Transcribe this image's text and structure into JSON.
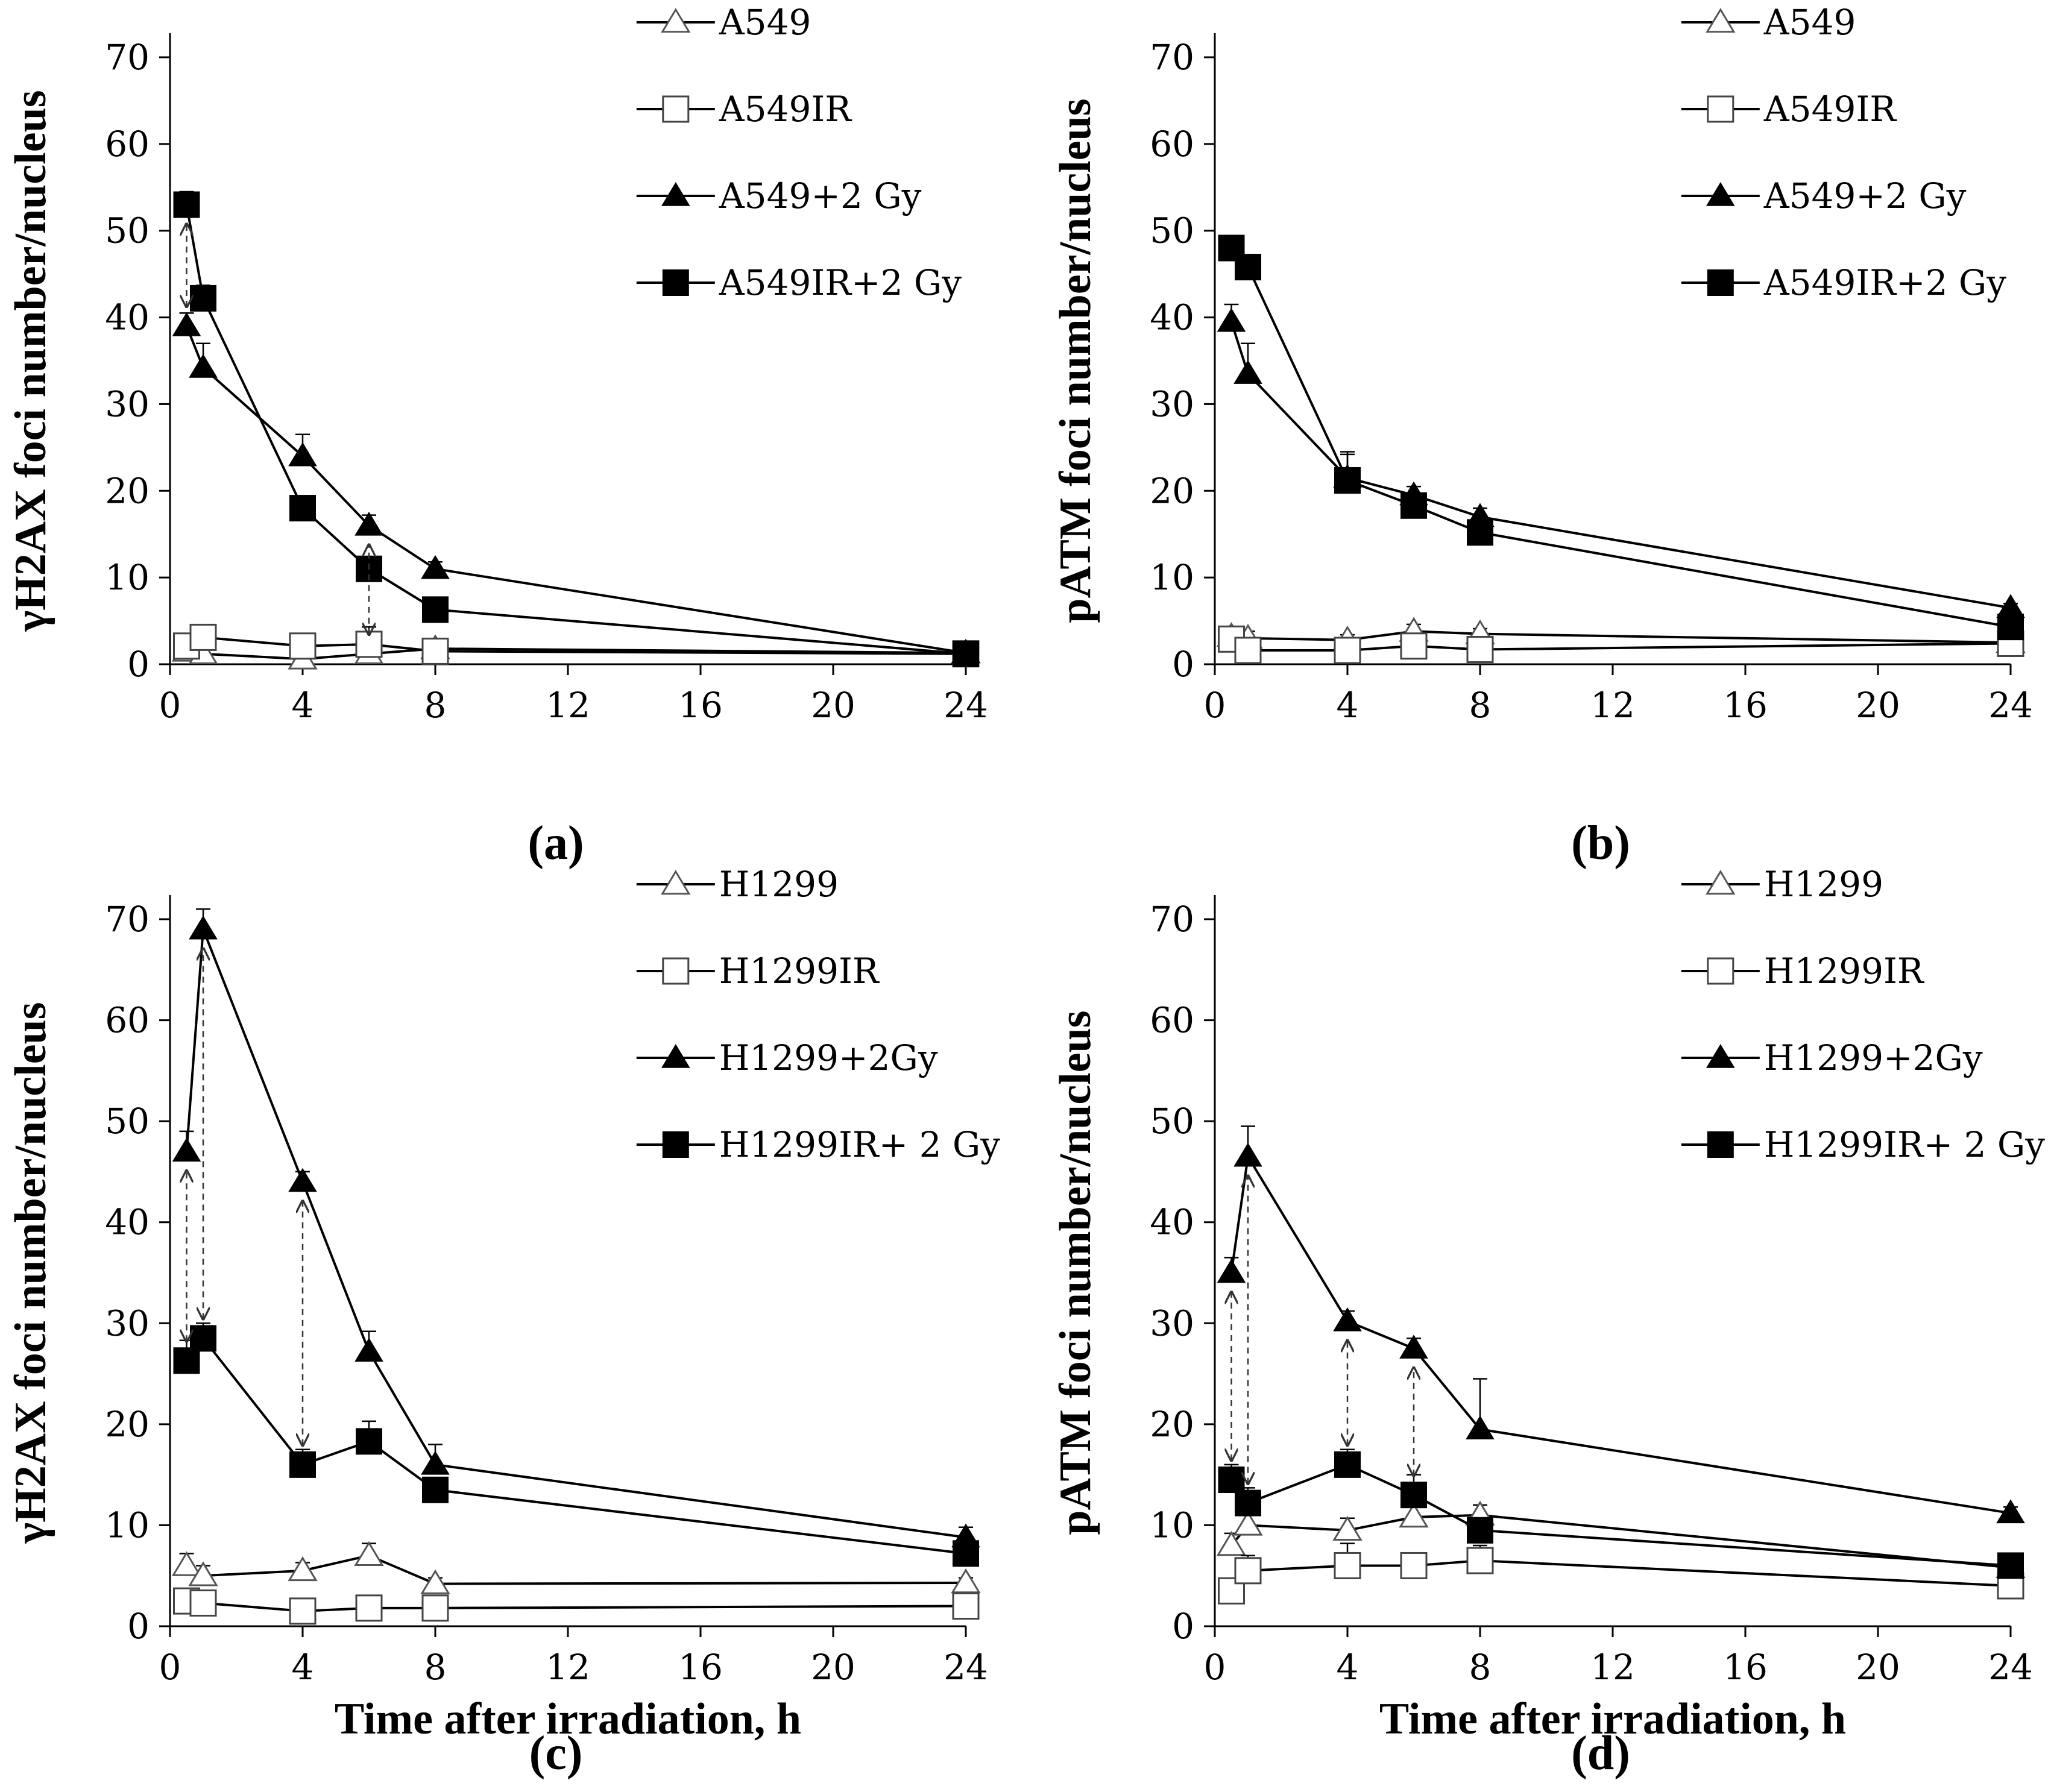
{
  "chart_data": [
    {
      "type": "line",
      "panel_label": "(a)",
      "title": "",
      "xlabel": "",
      "ylabel": "γH2AX foci number/nucleus",
      "xlim": [
        0,
        24
      ],
      "ylim": [
        0,
        70
      ],
      "xticks": [
        0,
        4,
        8,
        12,
        16,
        20,
        24
      ],
      "yticks": [
        0,
        10,
        20,
        30,
        40,
        50,
        60,
        70
      ],
      "grid": false,
      "legend_position": "top-right",
      "series": [
        {
          "name": "A549",
          "marker": "triangle-open",
          "x": [
            0.5,
            1,
            4,
            6,
            8,
            24
          ],
          "values": [
            1.5,
            1.2,
            0.6,
            1.2,
            1.8,
            1.3
          ],
          "errors": [
            0.6,
            0.6,
            0.5,
            1.5,
            0.5,
            0.4
          ]
        },
        {
          "name": "A549IR",
          "marker": "square-open",
          "x": [
            0.5,
            1,
            4,
            6,
            8,
            24
          ],
          "values": [
            2.1,
            3.1,
            2.1,
            2.3,
            1.5,
            1.2
          ],
          "errors": [
            0.8,
            0.8,
            0.6,
            2.0,
            0.5,
            0.4
          ]
        },
        {
          "name": "A549+2 Gy",
          "marker": "triangle-filled",
          "x": [
            0.5,
            1,
            4,
            6,
            8,
            24
          ],
          "values": [
            39,
            34.2,
            24,
            16,
            11,
            1.3
          ],
          "errors": [
            1.5,
            2.8,
            2.5,
            1.2,
            0.8,
            0.4
          ]
        },
        {
          "name": "A549IR+2 Gy",
          "marker": "square-filled",
          "x": [
            0.5,
            1,
            4,
            6,
            8,
            24
          ],
          "values": [
            53,
            42.2,
            18,
            11,
            6.3,
            1.2
          ],
          "errors": [
            1.5,
            1.5,
            1.0,
            1.0,
            0.6,
            0.4
          ]
        }
      ],
      "annotations": [
        {
          "type": "double-arrow",
          "x": 0.5,
          "from_series": "A549+2 Gy",
          "to_series": "A549IR+2 Gy"
        },
        {
          "type": "double-arrow",
          "x": 6,
          "from_series": "A549",
          "to_series": "A549+2 Gy"
        }
      ]
    },
    {
      "type": "line",
      "panel_label": "(b)",
      "title": "",
      "xlabel": "",
      "ylabel": "pATM foci number/nucleus",
      "xlim": [
        0,
        24
      ],
      "ylim": [
        0,
        70
      ],
      "xticks": [
        0,
        4,
        8,
        12,
        16,
        20,
        24
      ],
      "yticks": [
        0,
        10,
        20,
        30,
        40,
        50,
        60,
        70
      ],
      "grid": false,
      "legend_position": "top-right",
      "series": [
        {
          "name": "A549",
          "marker": "triangle-open",
          "x": [
            0.5,
            1,
            4,
            6,
            8,
            24
          ],
          "values": [
            3.2,
            3,
            2.8,
            3.8,
            3.5,
            2.5
          ],
          "errors": [
            0.8,
            0.8,
            0.6,
            0.8,
            0.6,
            0.4
          ]
        },
        {
          "name": "A549IR",
          "marker": "square-open",
          "x": [
            0.5,
            1,
            4,
            6,
            8,
            24
          ],
          "values": [
            2.9,
            1.6,
            1.6,
            2.1,
            1.7,
            2.4
          ],
          "errors": [
            0.6,
            0.5,
            0.5,
            0.6,
            0.5,
            0.4
          ]
        },
        {
          "name": "A549+2 Gy",
          "marker": "triangle-filled",
          "x": [
            0.5,
            1,
            4,
            6,
            8,
            24
          ],
          "values": [
            39.5,
            33.5,
            21.5,
            19.5,
            17,
            6.5
          ],
          "errors": [
            2.0,
            3.5,
            3.0,
            1.0,
            1.0,
            0.5
          ]
        },
        {
          "name": "A549IR+2 Gy",
          "marker": "square-filled",
          "x": [
            0.5,
            1,
            4,
            6,
            8,
            24
          ],
          "values": [
            48,
            45.8,
            21.2,
            18.3,
            15.2,
            4.3
          ],
          "errors": [
            1.0,
            1.0,
            3.0,
            1.0,
            1.5,
            0.5
          ]
        }
      ],
      "annotations": []
    },
    {
      "type": "line",
      "panel_label": "(c)",
      "title": "",
      "xlabel": "Time after irradiation, h",
      "ylabel": "γH2AX foci number/nucleus",
      "xlim": [
        0,
        24
      ],
      "ylim": [
        0,
        70
      ],
      "xticks": [
        0,
        4,
        8,
        12,
        16,
        20,
        24
      ],
      "yticks": [
        0,
        10,
        20,
        30,
        40,
        50,
        60,
        70
      ],
      "grid": false,
      "legend_position": "top-right",
      "series": [
        {
          "name": "H1299",
          "marker": "triangle-open",
          "x": [
            0.5,
            1,
            4,
            6,
            8,
            24
          ],
          "values": [
            6,
            5,
            5.5,
            7,
            4.2,
            4.3
          ],
          "errors": [
            1.2,
            1.0,
            0.8,
            1.2,
            0.6,
            0.5
          ]
        },
        {
          "name": "H1299IR",
          "marker": "square-open",
          "x": [
            0.5,
            1,
            4,
            6,
            8,
            24
          ],
          "values": [
            2.5,
            2.3,
            1.5,
            1.8,
            1.8,
            2
          ],
          "errors": [
            0.6,
            0.6,
            0.5,
            0.5,
            0.5,
            0.4
          ]
        },
        {
          "name": "H1299+2Gy",
          "marker": "triangle-filled",
          "x": [
            0.5,
            1,
            4,
            6,
            8,
            24
          ],
          "values": [
            47,
            69,
            44,
            27.2,
            16,
            8.8
          ],
          "errors": [
            2.0,
            2.0,
            1.0,
            2.0,
            2.0,
            1.0
          ]
        },
        {
          "name": "H1299IR+ 2 Gy",
          "marker": "square-filled",
          "x": [
            0.5,
            1,
            4,
            6,
            8,
            24
          ],
          "values": [
            26.3,
            28.5,
            16,
            18.3,
            13.5,
            7.2
          ],
          "errors": [
            2.0,
            1.5,
            1.5,
            2.0,
            1.0,
            0.8
          ]
        }
      ],
      "annotations": [
        {
          "type": "double-arrow",
          "x": 0.5,
          "from_series": "H1299IR+ 2 Gy",
          "to_series": "H1299+2Gy"
        },
        {
          "type": "double-arrow",
          "x": 1,
          "from_series": "H1299IR+ 2 Gy",
          "to_series": "H1299+2Gy"
        },
        {
          "type": "double-arrow",
          "x": 4,
          "from_series": "H1299IR+ 2 Gy",
          "to_series": "H1299+2Gy"
        }
      ]
    },
    {
      "type": "line",
      "panel_label": "(d)",
      "title": "",
      "xlabel": "Time after irradiation, h",
      "ylabel": "pATM foci number/nucleus",
      "xlim": [
        0,
        24
      ],
      "ylim": [
        0,
        70
      ],
      "xticks": [
        0,
        4,
        8,
        12,
        16,
        20,
        24
      ],
      "yticks": [
        0,
        10,
        20,
        30,
        40,
        50,
        60,
        70
      ],
      "grid": false,
      "legend_position": "top-right",
      "series": [
        {
          "name": "H1299",
          "marker": "triangle-open",
          "x": [
            0.5,
            1,
            4,
            6,
            8,
            24
          ],
          "values": [
            8,
            10,
            9.5,
            10.8,
            11,
            5.8
          ],
          "errors": [
            1.2,
            1.5,
            1.2,
            1.0,
            1.0,
            0.5
          ]
        },
        {
          "name": "H1299IR",
          "marker": "square-open",
          "x": [
            0.5,
            1,
            4,
            6,
            8,
            24
          ],
          "values": [
            3.5,
            5.5,
            6,
            6,
            6.5,
            4
          ],
          "errors": [
            0.8,
            1.5,
            2.2,
            1.0,
            1.5,
            0.5
          ]
        },
        {
          "name": "H1299+2Gy",
          "marker": "triangle-filled",
          "x": [
            0.5,
            1,
            4,
            6,
            8,
            24
          ],
          "values": [
            35,
            46.5,
            30.2,
            27.5,
            19.5,
            11.2
          ],
          "errors": [
            1.5,
            3.0,
            1.0,
            1.0,
            5.0,
            0.6
          ]
        },
        {
          "name": "H1299IR+ 2 Gy",
          "marker": "square-filled",
          "x": [
            0.5,
            1,
            4,
            6,
            8,
            24
          ],
          "values": [
            14.5,
            12.2,
            16,
            13,
            9.5,
            6
          ],
          "errors": [
            1.5,
            1.5,
            1.5,
            2.0,
            1.0,
            0.6
          ]
        }
      ],
      "annotations": [
        {
          "type": "double-arrow",
          "x": 0.5,
          "from_series": "H1299IR+ 2 Gy",
          "to_series": "H1299+2Gy"
        },
        {
          "type": "double-arrow",
          "x": 1,
          "from_series": "H1299IR+ 2 Gy",
          "to_series": "H1299+2Gy"
        },
        {
          "type": "double-arrow",
          "x": 4,
          "from_series": "H1299IR+ 2 Gy",
          "to_series": "H1299+2Gy"
        },
        {
          "type": "double-arrow",
          "x": 6,
          "from_series": "H1299IR+ 2 Gy",
          "to_series": "H1299+2Gy"
        }
      ]
    }
  ]
}
